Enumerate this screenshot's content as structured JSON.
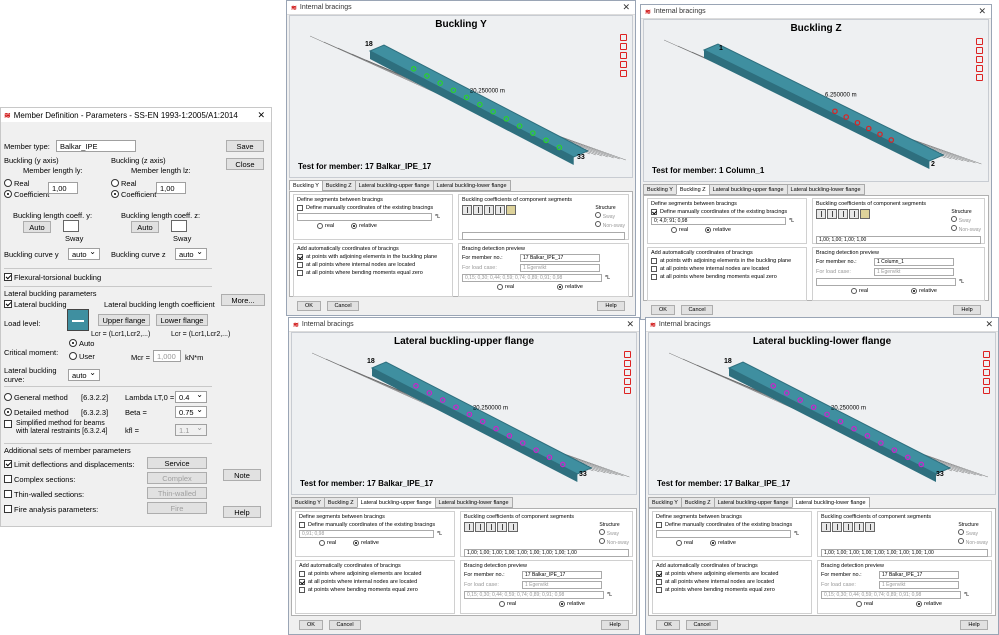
{
  "main_dialog": {
    "title": "Member Definition - Parameters - SS-EN 1993-1:2005/A1:2014",
    "member_type_label": "Member type:",
    "member_type_value": "Balkar_IPE",
    "buckling_y": {
      "label": "Buckling (y axis)",
      "length_label": "Member length ly:",
      "real": "Real",
      "coef": "Coefficient",
      "value": "1,00",
      "coeff_label": "Buckling length coeff. y:",
      "auto": "Auto",
      "sway": "Sway",
      "curve_label": "Buckling curve y",
      "curve_value": "auto"
    },
    "buckling_z": {
      "label": "Buckling (z axis)",
      "length_label": "Member length lz:",
      "real": "Real",
      "coef": "Coefficient",
      "value": "1,00",
      "coeff_label": "Buckling length coeff. z:",
      "auto": "Auto",
      "sway": "Sway",
      "curve_label": "Buckling curve z",
      "curve_value": "auto"
    },
    "flexural": "Flexural-torsional buckling",
    "ltb_params": "Lateral buckling parameters",
    "lateral_buckling": "Lateral buckling",
    "ltb_coeff": "Lateral buckling length coefficient",
    "more": "More...",
    "load_level": "Load level:",
    "upper_flange": "Upper flange",
    "lower_flange": "Lower flange",
    "lcr_left": "Lcr = (Lcr1,Lcr2,...)",
    "lcr_right": "Lcr = (Lcr1,Lcr2,...)",
    "critical_moment": "Critical moment:",
    "cm_auto": "Auto",
    "cm_user": "User",
    "mcr_label": "Mcr =",
    "mcr_value": "1,000",
    "mcr_unit": "kN*m",
    "ltb_curve_label": "Lateral buckling curve:",
    "ltb_curve_value": "auto",
    "general_method": "General method",
    "general_ref": "[6.3.2.2]",
    "detailed_method": "Detailed method",
    "detailed_ref": "[6.3.2.3]",
    "simplified_method": "Simplified method for beams with lateral restraints [6.3.2.4]",
    "lambda_label": "Lambda LT,0 =",
    "lambda_value": "0.4",
    "beta_label": "Beta =",
    "beta_value": "0.75",
    "kfl_label": "kfl =",
    "kfl_value": "1.1",
    "additional": "Additional sets of member parameters",
    "limit_deflections": "Limit deflections and displacements:",
    "complex_sections": "Complex sections:",
    "thin_walled": "Thin-walled sections:",
    "fire_analysis": "Fire analysis parameters:",
    "service": "Service",
    "complex": "Complex",
    "thin_walled_btn": "Thin-walled",
    "fire": "Fire",
    "save": "Save",
    "close": "Close",
    "note": "Note",
    "help": "Help"
  },
  "common": {
    "window_title": "Internal bracings",
    "tab_y": "Buckling Y",
    "tab_z": "Buckling Z",
    "tab_upper": "Lateral buckling-upper flange",
    "tab_lower": "Lateral buckling-lower flange",
    "define_segments": "Define segments between bracings",
    "define_manually": "Define manually coordinates of the existing bracings",
    "real": "real",
    "relative": "relative",
    "add_auto": "Add automatically coordinates of bracings",
    "adjoining_plane": "at points with adjoining elements in the buckling plane",
    "adjoining_located": "at points where adjoining elements are located",
    "internal_nodes": "at all points where internal nodes are located",
    "bending_zero": "at all points where bending moments equal zero",
    "bending_zero_2": "at points where bending moments equal zero",
    "coeffs_title": "Buckling coefficients of component segments",
    "structure": "Structure",
    "sway": "Sway",
    "non_sway": "Non-sway",
    "detection_preview": "Bracing detection preview",
    "for_member": "For member no.:",
    "for_load": "For load case:",
    "load_case": "1 Egenvikt",
    "unit_l": "*L",
    "ok": "OK",
    "cancel": "Cancel",
    "help": "Help",
    "dim_label": "20.250000 m"
  },
  "win_y": {
    "title": "Buckling Y",
    "test": "Test for member: 17 Balkar_IPE_17",
    "manual_value": "",
    "coeff_value": "",
    "member": "17 Balkar_IPE_17",
    "preview": "0,15; 0,30; 0,44; 0,59; 0,74; 0,89; 0,91; 0,98",
    "node_a": "18",
    "node_b": "33"
  },
  "win_z": {
    "title": "Buckling Z",
    "test": "Test for member: 1 Column_1",
    "manual_value": "0; 4,0; 91; 0,98",
    "coeff_value": "1,00; 1,00; 1,00; 1,00",
    "member": "1 Column_1",
    "preview": "",
    "node_a": "1",
    "node_b": "2",
    "dim": "6.250000 m"
  },
  "win_upper": {
    "title": "Lateral buckling-upper flange",
    "test": "Test for member: 17 Balkar_IPE_17",
    "manual_value": "0,91; 0,98",
    "coeff_value": "1,00; 1,00; 1,00; 1,00; 1,00; 1,00; 1,00; 1,00; 1,00",
    "member": "17 Balkar_IPE_17",
    "preview": "0,15; 0,30; 0,44; 0,59; 0,74; 0,89; 0,91; 0,98",
    "node_a": "18",
    "node_b": "33"
  },
  "win_lower": {
    "title": "Lateral buckling-lower flange",
    "test": "Test for member: 17 Balkar_IPE_17",
    "manual_value": "",
    "coeff_value": "1,00; 1,00; 1,00; 1,00; 1,00; 1,00; 1,00; 1,00; 1,00",
    "member": "17 Balkar_IPE_17",
    "preview": "0,15; 0,30; 0,44; 0,59; 0,74; 0,89; 0,91; 0,98",
    "node_a": "18",
    "node_b": "33"
  },
  "colors": {
    "beam": "#3f8fa0",
    "beam_dark": "#2e6f7e",
    "green": "#2bd12b",
    "magenta": "#cc22cc",
    "red": "#e02020"
  }
}
